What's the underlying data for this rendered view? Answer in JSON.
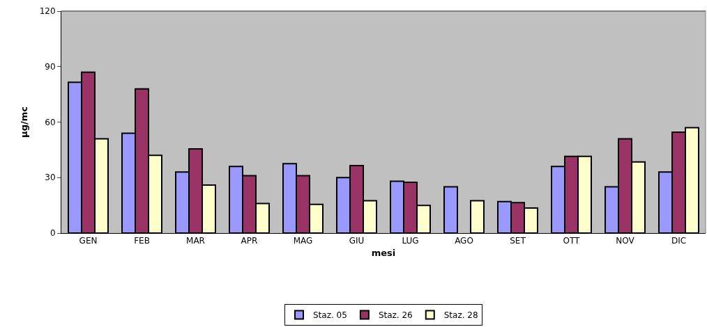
{
  "chart_data": {
    "type": "bar",
    "xlabel": "mesi",
    "ylabel": "µg/mc",
    "categories": [
      "GEN",
      "FEB",
      "MAR",
      "APR",
      "MAG",
      "GIU",
      "LUG",
      "AGO",
      "SET",
      "OTT",
      "NOV",
      "DIC"
    ],
    "series": [
      {
        "name": "Staz. 05",
        "color": "#9999ff",
        "values": [
          81.5,
          54,
          33,
          36,
          37.5,
          30,
          28,
          25,
          17,
          36,
          25,
          33
        ]
      },
      {
        "name": "Staz. 26",
        "color": "#993366",
        "values": [
          87,
          78,
          45.5,
          31,
          31,
          36.5,
          27.5,
          null,
          16.5,
          41.5,
          51,
          54.5
        ]
      },
      {
        "name": "Staz. 28",
        "color": "#ffffcc",
        "values": [
          51,
          42,
          26,
          16,
          15.5,
          17.5,
          15,
          17.5,
          13.5,
          41.5,
          38.5,
          57
        ]
      }
    ],
    "ylim": [
      0,
      120
    ],
    "yticks": [
      0,
      30,
      60,
      90,
      120
    ],
    "grid": false,
    "legend": "bottom"
  }
}
